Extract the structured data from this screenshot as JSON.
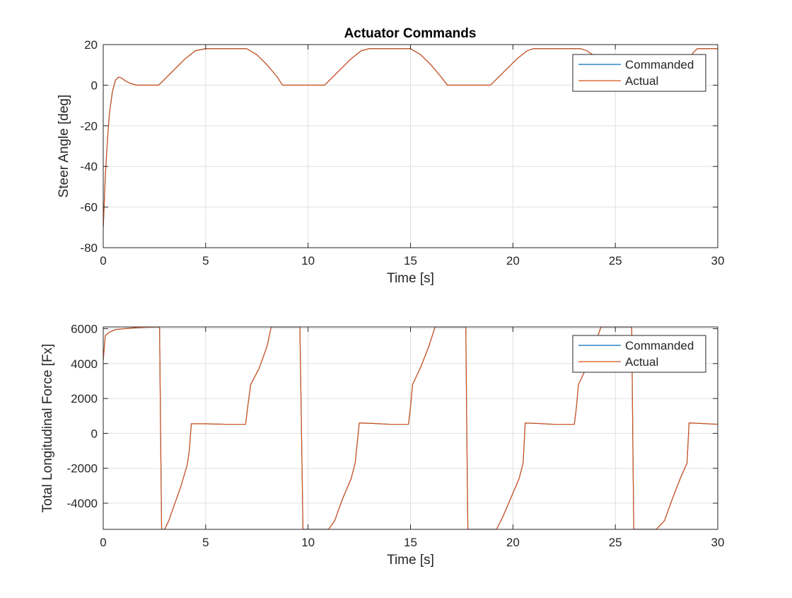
{
  "figure": {
    "title": "Actuator Commands",
    "colors": {
      "commanded": "#0072BD",
      "actual": "#D95319",
      "grid": "#e0e0e0",
      "axis": "#262626"
    }
  },
  "chart_data": [
    {
      "type": "line",
      "title": "Actuator Commands",
      "xlabel": "Time [s]",
      "ylabel": "Steer Angle [deg]",
      "xlim": [
        0,
        30
      ],
      "ylim": [
        -80,
        20
      ],
      "x_ticks": [
        0,
        5,
        10,
        15,
        20,
        25,
        30
      ],
      "y_ticks": [
        -80,
        -60,
        -40,
        -20,
        0,
        20
      ],
      "grid": true,
      "legend": {
        "position": "top-right",
        "entries": [
          "Commanded",
          "Actual"
        ]
      },
      "series": [
        {
          "name": "Commanded",
          "color": "#0072BD",
          "x": [
            0,
            0.05,
            0.1,
            0.2,
            0.3,
            0.45,
            0.6,
            0.75,
            0.9,
            1.1,
            1.3,
            1.6,
            1.8,
            2.0,
            2.7,
            3.0,
            3.5,
            4.0,
            4.5,
            5.0,
            6.0,
            7.0,
            7.5,
            8.0,
            8.5,
            8.75,
            10.8,
            11.1,
            11.6,
            12.1,
            12.6,
            13.0,
            14.0,
            15.0,
            15.5,
            16.0,
            16.5,
            16.8,
            18.9,
            19.2,
            19.7,
            20.2,
            20.7,
            21.0,
            22.0,
            23.3,
            23.6,
            23.9,
            24.2,
            24.6,
            24.9,
            28.2,
            28.5,
            28.8,
            29.0,
            30.0
          ],
          "y": [
            -70,
            -58,
            -45,
            -28,
            -14,
            -3,
            2.5,
            4,
            3.5,
            2,
            1,
            0.1,
            0,
            0,
            0,
            3,
            8,
            13,
            17,
            18,
            18,
            18,
            15,
            10,
            4,
            0,
            0,
            3,
            8,
            13,
            17,
            18,
            18,
            18,
            15,
            10,
            4,
            0,
            0,
            3,
            8,
            13,
            17,
            18,
            18,
            18,
            17,
            15,
            12,
            8,
            4,
            4,
            10,
            16,
            18,
            18
          ]
        },
        {
          "name": "Actual",
          "color": "#D95319",
          "x": [
            0,
            0.05,
            0.1,
            0.2,
            0.3,
            0.45,
            0.6,
            0.75,
            0.9,
            1.1,
            1.3,
            1.6,
            1.8,
            2.0,
            2.7,
            3.0,
            3.5,
            4.0,
            4.5,
            5.0,
            6.0,
            7.0,
            7.5,
            8.0,
            8.5,
            8.75,
            10.8,
            11.1,
            11.6,
            12.1,
            12.6,
            13.0,
            14.0,
            15.0,
            15.5,
            16.0,
            16.5,
            16.8,
            18.9,
            19.2,
            19.7,
            20.2,
            20.7,
            21.0,
            22.0,
            23.3,
            23.6,
            23.9,
            24.2,
            24.6,
            24.9,
            28.2,
            28.5,
            28.8,
            29.0,
            30.0
          ],
          "y": [
            -70,
            -58,
            -45,
            -28,
            -14,
            -3,
            2.5,
            4,
            3.5,
            2,
            1,
            0.1,
            0,
            0,
            0,
            3,
            8,
            13,
            17,
            18,
            18,
            18,
            15,
            10,
            4,
            0,
            0,
            3,
            8,
            13,
            17,
            18,
            18,
            18,
            15,
            10,
            4,
            0,
            0,
            3,
            8,
            13,
            17,
            18,
            18,
            18,
            17,
            15,
            12,
            8,
            4,
            4,
            10,
            16,
            18,
            18
          ]
        }
      ]
    },
    {
      "type": "line",
      "title": "",
      "xlabel": "Time [s]",
      "ylabel": "Total Longitudinal Force [Fx]",
      "xlim": [
        0,
        30
      ],
      "ylim": [
        -5500,
        6100
      ],
      "x_ticks": [
        0,
        5,
        10,
        15,
        20,
        25,
        30
      ],
      "y_ticks": [
        -4000,
        -2000,
        0,
        2000,
        4000,
        6000
      ],
      "grid": true,
      "legend": {
        "position": "top-right",
        "entries": [
          "Commanded",
          "Actual"
        ]
      },
      "series": [
        {
          "name": "Commanded",
          "color": "#0072BD",
          "x": [
            0,
            0.1,
            0.3,
            0.6,
            1.0,
            1.5,
            2.0,
            2.75,
            2.8,
            2.85,
            3.0,
            3.2,
            3.5,
            3.8,
            4.1,
            4.2,
            4.3,
            5.0,
            6.0,
            6.95,
            7.05,
            7.2,
            7.6,
            8.0,
            8.2,
            9.0,
            9.6,
            9.68,
            9.75,
            10.0,
            11.0,
            11.3,
            11.7,
            12.1,
            12.3,
            12.5,
            13.0,
            14.0,
            14.9,
            15.0,
            15.1,
            15.5,
            15.9,
            16.2,
            16.5,
            17.7,
            17.75,
            17.8,
            19.2,
            19.5,
            19.9,
            20.3,
            20.5,
            20.6,
            21.0,
            22.0,
            23.0,
            23.1,
            23.2,
            23.6,
            24.0,
            24.3,
            24.6,
            25.8,
            25.85,
            25.9,
            27.0,
            27.4,
            27.8,
            28.2,
            28.5,
            28.6,
            29.0,
            30.0
          ],
          "y": [
            4200,
            5600,
            5800,
            5950,
            6000,
            6050,
            6080,
            6100,
            0,
            -5500,
            -5500,
            -5000,
            -4000,
            -3000,
            -1800,
            -1000,
            550,
            550,
            520,
            520,
            1500,
            2800,
            3700,
            5000,
            6100,
            6100,
            6100,
            0,
            -5500,
            -5500,
            -5500,
            -5000,
            -3700,
            -2600,
            -1700,
            600,
            580,
            520,
            520,
            1500,
            2800,
            3800,
            5000,
            6100,
            6100,
            6100,
            0,
            -5500,
            -5500,
            -4800,
            -3700,
            -2600,
            -1700,
            600,
            580,
            520,
            520,
            1500,
            2800,
            3800,
            5100,
            6100,
            6100,
            6100,
            0,
            -5500,
            -5500,
            -5000,
            -3700,
            -2500,
            -1700,
            600,
            580,
            520
          ]
        },
        {
          "name": "Actual",
          "color": "#D95319",
          "x": [
            0,
            0.1,
            0.3,
            0.6,
            1.0,
            1.5,
            2.0,
            2.75,
            2.8,
            2.85,
            3.0,
            3.2,
            3.5,
            3.8,
            4.1,
            4.2,
            4.3,
            5.0,
            6.0,
            6.95,
            7.05,
            7.2,
            7.6,
            8.0,
            8.2,
            9.0,
            9.6,
            9.68,
            9.75,
            10.0,
            11.0,
            11.3,
            11.7,
            12.1,
            12.3,
            12.5,
            13.0,
            14.0,
            14.9,
            15.0,
            15.1,
            15.5,
            15.9,
            16.2,
            16.5,
            17.7,
            17.75,
            17.8,
            19.2,
            19.5,
            19.9,
            20.3,
            20.5,
            20.6,
            21.0,
            22.0,
            23.0,
            23.1,
            23.2,
            23.6,
            24.0,
            24.3,
            24.6,
            25.8,
            25.85,
            25.9,
            27.0,
            27.4,
            27.8,
            28.2,
            28.5,
            28.6,
            29.0,
            30.0
          ],
          "y": [
            4200,
            5600,
            5800,
            5950,
            6000,
            6050,
            6080,
            6100,
            0,
            -5500,
            -5500,
            -5000,
            -4000,
            -3000,
            -1800,
            -1000,
            550,
            550,
            520,
            520,
            1500,
            2800,
            3700,
            5000,
            6100,
            6100,
            6100,
            0,
            -5500,
            -5500,
            -5500,
            -5000,
            -3700,
            -2600,
            -1700,
            600,
            580,
            520,
            520,
            1500,
            2800,
            3800,
            5000,
            6100,
            6100,
            6100,
            0,
            -5500,
            -5500,
            -4800,
            -3700,
            -2600,
            -1700,
            600,
            580,
            520,
            520,
            1500,
            2800,
            3800,
            5100,
            6100,
            6100,
            6100,
            0,
            -5500,
            -5500,
            -5000,
            -3700,
            -2500,
            -1700,
            600,
            580,
            520
          ]
        }
      ]
    }
  ]
}
